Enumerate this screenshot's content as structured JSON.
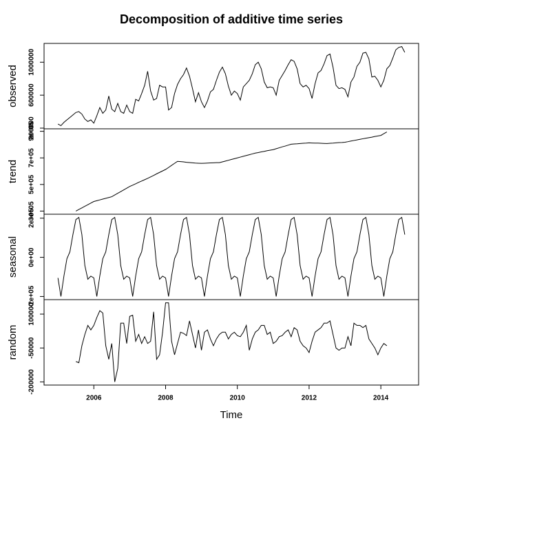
{
  "chart_data": {
    "type": "line",
    "title": "Decomposition of additive time series",
    "xlabel": "Time",
    "x": [
      2005,
      2005.083,
      2005.167,
      2005.25,
      2005.333,
      2005.417,
      2005.5,
      2005.583,
      2005.667,
      2005.75,
      2005.833,
      2005.917,
      2006,
      2006.083,
      2006.167,
      2006.25,
      2006.333,
      2006.417,
      2006.5,
      2006.583,
      2006.667,
      2006.75,
      2006.833,
      2006.917,
      2007,
      2007.083,
      2007.167,
      2007.25,
      2007.333,
      2007.417,
      2007.5,
      2007.583,
      2007.667,
      2007.75,
      2007.833,
      2007.917,
      2008,
      2008.083,
      2008.167,
      2008.25,
      2008.333,
      2008.417,
      2008.5,
      2008.583,
      2008.667,
      2008.75,
      2008.833,
      2008.917,
      2009,
      2009.083,
      2009.167,
      2009.25,
      2009.333,
      2009.417,
      2009.5,
      2009.583,
      2009.667,
      2009.75,
      2009.833,
      2009.917,
      2010,
      2010.083,
      2010.167,
      2010.25,
      2010.333,
      2010.417,
      2010.5,
      2010.583,
      2010.667,
      2010.75,
      2010.833,
      2010.917,
      2011,
      2011.083,
      2011.167,
      2011.25,
      2011.333,
      2011.417,
      2011.5,
      2011.583,
      2011.667,
      2011.75,
      2011.833,
      2011.917,
      2012,
      2012.083,
      2012.167,
      2012.25,
      2012.333,
      2012.417,
      2012.5,
      2012.583,
      2012.667,
      2012.75,
      2012.833,
      2012.917,
      2013,
      2013.083,
      2013.167,
      2013.25,
      2013.333,
      2013.417,
      2013.5,
      2013.583,
      2013.667,
      2013.75,
      2013.833,
      2013.917,
      2014,
      2014.083,
      2014.167,
      2014.25,
      2014.333,
      2014.417,
      2014.5,
      2014.583,
      2014.667
    ],
    "xlim": [
      2004.613,
      2015.053
    ],
    "xticks": [
      2006,
      2008,
      2010,
      2012,
      2014
    ],
    "color": "#000000",
    "series": [
      {
        "name": "observed",
        "ylim": [
          191600,
          1228400
        ],
        "yticks": [
          200000,
          600000,
          1000000
        ],
        "values": [
          250000,
          230000,
          270000,
          300000,
          330000,
          360000,
          390000,
          400000,
          370000,
          310000,
          280000,
          300000,
          260000,
          350000,
          450000,
          380000,
          420000,
          590000,
          430000,
          400000,
          500000,
          400000,
          380000,
          480000,
          400000,
          380000,
          550000,
          530000,
          620000,
          720000,
          890000,
          650000,
          540000,
          560000,
          720000,
          700000,
          700000,
          420000,
          450000,
          620000,
          730000,
          800000,
          850000,
          930000,
          830000,
          680000,
          520000,
          630000,
          520000,
          450000,
          530000,
          640000,
          670000,
          780000,
          880000,
          940000,
          860000,
          710000,
          600000,
          650000,
          620000,
          540000,
          700000,
          740000,
          780000,
          860000,
          970000,
          1000000,
          920000,
          760000,
          690000,
          700000,
          690000,
          600000,
          780000,
          840000,
          900000,
          970000,
          1030000,
          1010000,
          920000,
          740000,
          700000,
          720000,
          680000,
          560000,
          740000,
          870000,
          900000,
          980000,
          1080000,
          1100000,
          940000,
          720000,
          680000,
          690000,
          670000,
          580000,
          760000,
          820000,
          950000,
          1000000,
          1110000,
          1120000,
          1040000,
          820000,
          830000,
          780000,
          700000,
          780000,
          920000,
          960000,
          1050000,
          1150000,
          1180000,
          1190000,
          1120000
        ]
      },
      {
        "name": "trend",
        "ylim": [
          276200,
          918800
        ],
        "yticks": [
          {
            "value": 300000,
            "label": "3e+05"
          },
          {
            "value": 500000,
            "label": "5e+05"
          },
          {
            "value": 700000,
            "label": "7e+05"
          },
          {
            "value": 900000,
            "label": "9e+05"
          }
        ],
        "values": [
          null,
          null,
          null,
          null,
          null,
          null,
          300000,
          312000,
          324000,
          336000,
          348000,
          360000,
          372000,
          378000,
          384000,
          390000,
          396000,
          402000,
          408000,
          421000,
          434000,
          446000,
          459000,
          472000,
          485000,
          495000,
          505000,
          516000,
          526000,
          536000,
          546000,
          557000,
          568000,
          580000,
          591000,
          602000,
          613000,
          628000,
          644000,
          659000,
          674000,
          672000,
          670000,
          667000,
          665000,
          663000,
          661000,
          660000,
          659000,
          660000,
          661000,
          662000,
          663000,
          664000,
          664000,
          670000,
          676000,
          682000,
          688000,
          694000,
          700000,
          706000,
          712000,
          718000,
          724000,
          730000,
          736000,
          740000,
          745000,
          749000,
          754000,
          758000,
          762000,
          769000,
          776000,
          783000,
          789000,
          796000,
          803000,
          805000,
          806000,
          808000,
          810000,
          811000,
          813000,
          812000,
          811000,
          811000,
          810000,
          809000,
          808000,
          810000,
          811000,
          813000,
          815000,
          816000,
          818000,
          822000,
          827000,
          831000,
          835000,
          840000,
          844000,
          848000,
          852000,
          856000,
          861000,
          865000,
          869000,
          882000,
          895000,
          null,
          null,
          null,
          null,
          null,
          null
        ]
      },
      {
        "name": "seasonal",
        "ylim": [
          -216160,
          220160
        ],
        "yticks": [
          {
            "value": -200000,
            "label": "-2e+05"
          },
          {
            "value": 0,
            "label": "0e+00"
          },
          {
            "value": 200000,
            "label": "2e+05"
          }
        ],
        "values": [
          -105000,
          -200000,
          -95000,
          -7000,
          28000,
          116000,
          193000,
          204000,
          116000,
          -42000,
          -112000,
          -96000,
          -105000,
          -200000,
          -95000,
          -7000,
          28000,
          116000,
          193000,
          204000,
          116000,
          -42000,
          -112000,
          -96000,
          -105000,
          -200000,
          -95000,
          -7000,
          28000,
          116000,
          193000,
          204000,
          116000,
          -42000,
          -112000,
          -96000,
          -105000,
          -200000,
          -95000,
          -7000,
          28000,
          116000,
          193000,
          204000,
          116000,
          -42000,
          -112000,
          -96000,
          -105000,
          -200000,
          -95000,
          -7000,
          28000,
          116000,
          193000,
          204000,
          116000,
          -42000,
          -112000,
          -96000,
          -105000,
          -200000,
          -95000,
          -7000,
          28000,
          116000,
          193000,
          204000,
          116000,
          -42000,
          -112000,
          -96000,
          -105000,
          -200000,
          -95000,
          -7000,
          28000,
          116000,
          193000,
          204000,
          116000,
          -42000,
          -112000,
          -96000,
          -105000,
          -200000,
          -95000,
          -7000,
          28000,
          116000,
          193000,
          204000,
          116000,
          -42000,
          -112000,
          -96000,
          -105000,
          -200000,
          -95000,
          -7000,
          28000,
          116000,
          193000,
          204000,
          116000,
          -42000,
          -112000,
          -96000,
          -105000,
          -200000,
          -95000,
          -7000,
          28000,
          116000,
          193000,
          204000,
          116000
        ]
      },
      {
        "name": "random",
        "ylim": [
          -214000,
          164000
        ],
        "yticks": [
          -200000,
          -50000,
          100000
        ],
        "values": [
          null,
          null,
          null,
          null,
          null,
          null,
          -110000,
          -115000,
          -40000,
          10000,
          50000,
          30000,
          50000,
          85000,
          115000,
          105000,
          -40000,
          -100000,
          -30000,
          -200000,
          -140000,
          60000,
          60000,
          -30000,
          90000,
          95000,
          -20000,
          10000,
          -30000,
          0,
          -30000,
          -20000,
          110000,
          -100000,
          -80000,
          20000,
          150000,
          150000,
          -20000,
          -80000,
          -30000,
          20000,
          15000,
          5000,
          70000,
          10000,
          -50000,
          30000,
          -60000,
          20000,
          30000,
          -10000,
          -40000,
          -10000,
          10000,
          20000,
          20000,
          -10000,
          10000,
          20000,
          5000,
          0,
          20000,
          50000,
          -60000,
          -10000,
          20000,
          30000,
          50000,
          50000,
          10000,
          20000,
          -30000,
          -20000,
          0,
          5000,
          20000,
          30000,
          0,
          40000,
          30000,
          -20000,
          -40000,
          -50000,
          -70000,
          -20000,
          20000,
          30000,
          40000,
          60000,
          60000,
          70000,
          10000,
          -50000,
          -60000,
          -50000,
          -50000,
          0,
          -40000,
          60000,
          50000,
          50000,
          40000,
          50000,
          -10000,
          -30000,
          -50000,
          -80000,
          -50000,
          -30000,
          -40000,
          null,
          null,
          null,
          null,
          null,
          null
        ]
      }
    ]
  }
}
